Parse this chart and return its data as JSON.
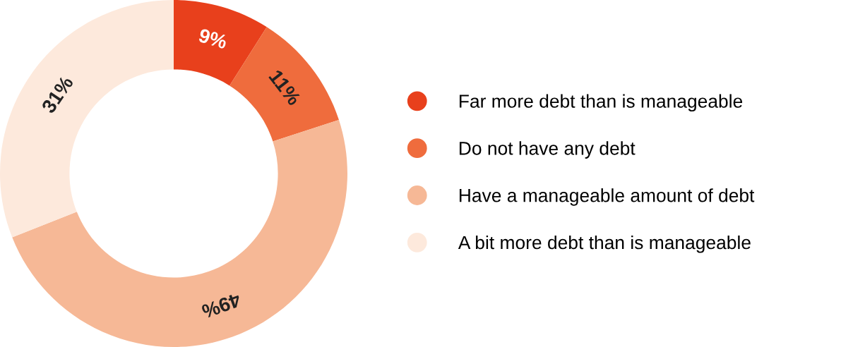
{
  "chart_data": {
    "type": "donut",
    "categories": [
      "Far more debt than is manageable",
      "Do not have any debt",
      "Have a manageable amount of debt",
      "A bit more debt than is manageable"
    ],
    "values": [
      9,
      11,
      49,
      31
    ],
    "colors": [
      "#e8401c",
      "#ef6c3d",
      "#f6b896",
      "#fde9dc"
    ],
    "value_labels": [
      "9%",
      "11%",
      "49%",
      "31%"
    ],
    "legend": "right"
  }
}
